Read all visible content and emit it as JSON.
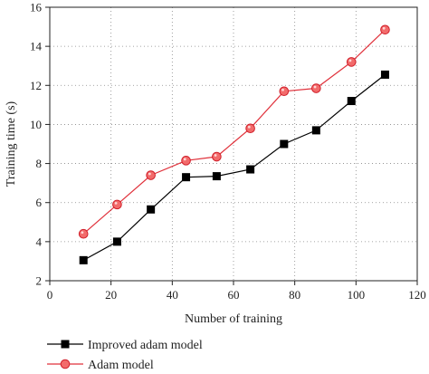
{
  "chart_data": {
    "type": "line",
    "title": "",
    "xlabel": "Number of training",
    "ylabel": "Training time (s)",
    "xlim": [
      0,
      120
    ],
    "ylim": [
      2,
      16
    ],
    "x_ticks": [
      "0",
      "20",
      "40",
      "60",
      "80",
      "100",
      "120"
    ],
    "y_ticks": [
      "2",
      "4",
      "6",
      "8",
      "10",
      "12",
      "14",
      "16"
    ],
    "grid": true,
    "legend_position": "bottom",
    "series": [
      {
        "name": "Improved adam model",
        "color": "#000000",
        "marker": "square",
        "x": [
          11,
          22,
          33,
          44.5,
          54.5,
          65.5,
          76.5,
          87,
          98.5,
          109.5
        ],
        "y": [
          3.05,
          4.0,
          5.65,
          7.3,
          7.35,
          7.7,
          9.0,
          9.7,
          11.2,
          12.55
        ]
      },
      {
        "name": "Adam model",
        "color": "#e0303a",
        "marker": "circle",
        "x": [
          11,
          22,
          33,
          44.5,
          54.5,
          65.5,
          76.5,
          87,
          98.5,
          109.5
        ],
        "y": [
          4.4,
          5.9,
          7.4,
          8.15,
          8.35,
          9.8,
          11.7,
          11.85,
          13.2,
          14.85
        ]
      }
    ]
  }
}
